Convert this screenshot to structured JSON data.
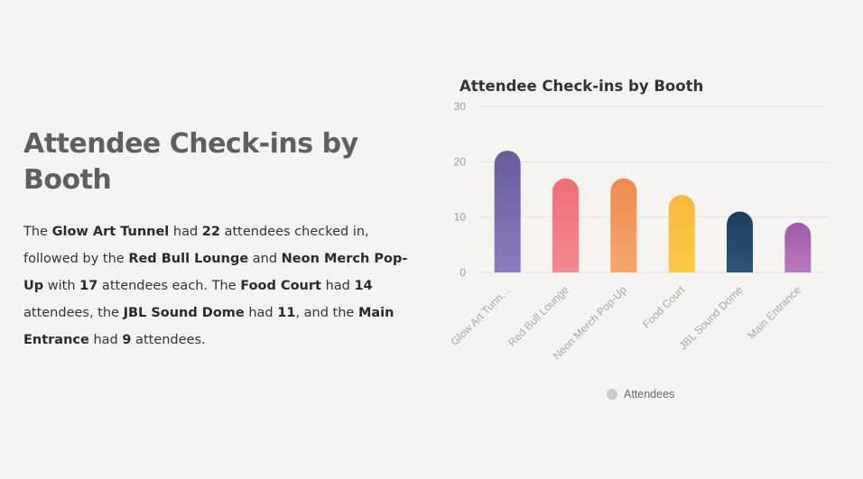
{
  "heading": "Attendee Check-ins by Booth",
  "summary": {
    "t1": "The ",
    "b1": "Glow Art Tunnel",
    "t2": " had ",
    "b2": "22",
    "t3": " attendees checked in, followed by the ",
    "b3": "Red Bull Lounge",
    "t4": " and ",
    "b4": "Neon Merch Pop-Up",
    "t5": " with ",
    "b5": "17",
    "t6": " attendees each. The ",
    "b6": "Food Court",
    "t7": " had ",
    "b7": "14",
    "t8": " attendees, the ",
    "b8": "JBL Sound Dome",
    "t9": " had ",
    "b9": "11",
    "t10": ", and the ",
    "b10": "Main Entrance",
    "t11": " had ",
    "b11": "9",
    "t12": " attendees."
  },
  "chart_data": {
    "type": "bar",
    "title": "Attendee Check-ins by Booth",
    "categories": [
      "Glow Art Tunnel",
      "Red Bull Lounge",
      "Neon Merch Pop-Up",
      "Food Court",
      "JBL Sound Dome",
      "Main Entrance"
    ],
    "category_labels": [
      "Glow Art Tunn…",
      "Red Bull Lounge",
      "Neon Merch Pop-Up",
      "Food Court",
      "JBL Sound Dome",
      "Main Entrance"
    ],
    "series": [
      {
        "name": "Attendees",
        "values": [
          22,
          17,
          17,
          14,
          11,
          9
        ]
      }
    ],
    "colors": [
      [
        "#8b7bbf",
        "#6a5a9c"
      ],
      [
        "#f48a90",
        "#ee6f78"
      ],
      [
        "#f5a76d",
        "#f08a4f"
      ],
      [
        "#fbc948",
        "#f7b93c"
      ],
      [
        "#2b5577",
        "#1d3f5f"
      ],
      [
        "#b97bbf",
        "#a15aa8"
      ]
    ],
    "legend_color": "#c9c9c9",
    "yticks": [
      0,
      10,
      20,
      30
    ],
    "ylim": [
      0,
      30
    ],
    "grid": true,
    "legend": "bottom"
  }
}
